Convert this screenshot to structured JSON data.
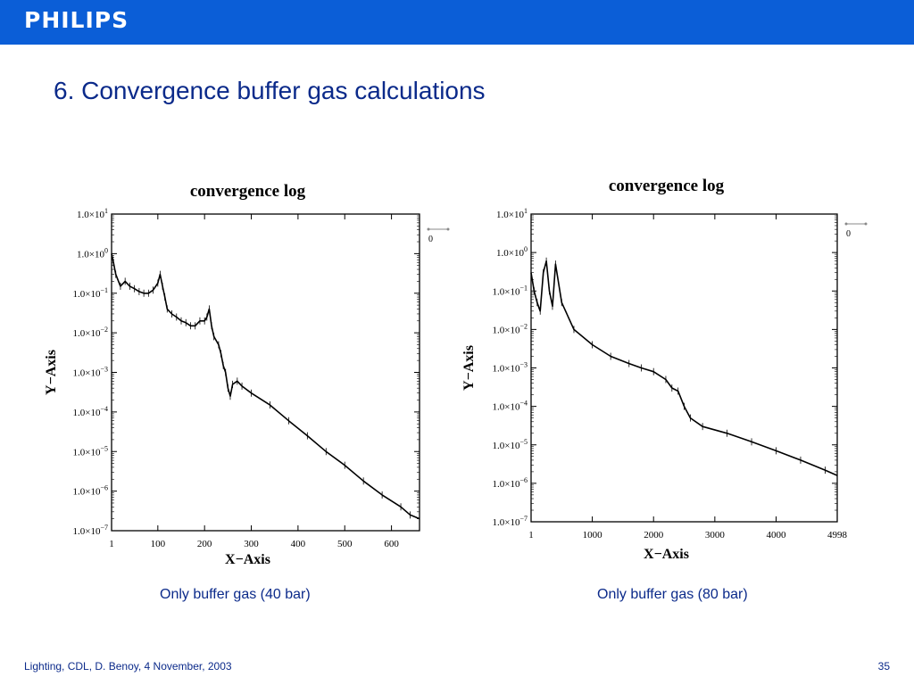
{
  "header": {
    "brand": "PHILIPS"
  },
  "slide": {
    "title": "6. Convergence buffer gas calculations"
  },
  "footer": {
    "text": "Lighting, CDL, D. Benoy, 4 November, 2003",
    "page": "35"
  },
  "colors": {
    "brand_bar": "#0b5ed7",
    "title_text": "#0b2a8a",
    "plot_ink": "#000000"
  },
  "chart_data": [
    {
      "type": "line",
      "title": "convergence log",
      "xlabel": "X−Axis",
      "ylabel": "Y−Axis",
      "log_y": true,
      "xlim": [
        1,
        660
      ],
      "ylim": [
        1e-07,
        10
      ],
      "x_ticks": [
        1,
        100,
        200,
        300,
        400,
        500,
        600
      ],
      "x_tick_labels": [
        "1",
        "100",
        "200",
        "300",
        "400",
        "500",
        "600"
      ],
      "y_ticks": [
        10,
        1,
        0.1,
        0.01,
        0.001,
        0.0001,
        1e-05,
        1e-06,
        1e-07
      ],
      "y_tick_mantissa": "1.0×10",
      "y_tick_exponents": [
        "1",
        "0",
        "−1",
        "−2",
        "−3",
        "−4",
        "−5",
        "−6",
        "−7"
      ],
      "legend": {
        "entries": [
          "0"
        ],
        "placement": "top-right outside"
      },
      "series": [
        {
          "x": [
            1,
            5,
            10,
            20,
            30,
            40,
            50,
            60,
            70,
            80,
            90,
            100,
            105,
            110,
            115,
            120,
            130,
            140,
            150,
            160,
            170,
            180,
            190,
            200,
            205,
            210,
            215,
            220,
            230,
            235,
            240,
            245,
            250,
            255,
            260,
            270,
            280,
            300,
            340,
            380,
            420,
            460,
            500,
            540,
            580,
            620,
            640,
            660
          ],
          "y": [
            1.0,
            0.6,
            0.3,
            0.15,
            0.2,
            0.15,
            0.13,
            0.11,
            0.1,
            0.1,
            0.12,
            0.18,
            0.3,
            0.15,
            0.08,
            0.04,
            0.03,
            0.025,
            0.02,
            0.018,
            0.015,
            0.015,
            0.02,
            0.02,
            0.025,
            0.04,
            0.015,
            0.008,
            0.005,
            0.003,
            0.0015,
            0.001,
            0.0004,
            0.00025,
            0.0005,
            0.0006,
            0.00045,
            0.0003,
            0.00015,
            6e-05,
            2.5e-05,
            1e-05,
            4.5e-06,
            1.8e-06,
            8e-07,
            4e-07,
            2.5e-07,
            2e-07
          ]
        }
      ],
      "caption": "Only buffer gas (40 bar)"
    },
    {
      "type": "line",
      "title": "convergence log",
      "xlabel": "X−Axis",
      "ylabel": "Y−Axis",
      "log_y": true,
      "xlim": [
        1,
        4998
      ],
      "ylim": [
        1e-07,
        10
      ],
      "x_ticks": [
        1,
        1000,
        2000,
        3000,
        4000,
        4998
      ],
      "x_tick_labels": [
        "1",
        "1000",
        "2000",
        "3000",
        "4000",
        "4998"
      ],
      "y_ticks": [
        10,
        1,
        0.1,
        0.01,
        0.001,
        0.0001,
        1e-05,
        1e-06,
        1e-07
      ],
      "y_tick_mantissa": "1.0×10",
      "y_tick_exponents": [
        "1",
        "0",
        "−1",
        "−2",
        "−3",
        "−4",
        "−5",
        "−6",
        "−7"
      ],
      "legend": {
        "entries": [
          "0"
        ],
        "placement": "top-right outside"
      },
      "series": [
        {
          "x": [
            1,
            50,
            100,
            150,
            200,
            250,
            300,
            350,
            400,
            500,
            700,
            1000,
            1300,
            1600,
            1800,
            2000,
            2200,
            2300,
            2400,
            2500,
            2600,
            2800,
            3200,
            3600,
            4000,
            4400,
            4800,
            4998
          ],
          "y": [
            0.3,
            0.1,
            0.05,
            0.03,
            0.3,
            0.6,
            0.1,
            0.04,
            0.5,
            0.05,
            0.01,
            0.004,
            0.002,
            0.0013,
            0.001,
            0.0008,
            0.0005,
            0.0003,
            0.00025,
            0.0001,
            5e-05,
            3e-05,
            2e-05,
            1.2e-05,
            7e-06,
            4e-06,
            2.2e-06,
            1.6e-06
          ]
        }
      ],
      "caption": "Only buffer gas (80 bar)"
    }
  ]
}
